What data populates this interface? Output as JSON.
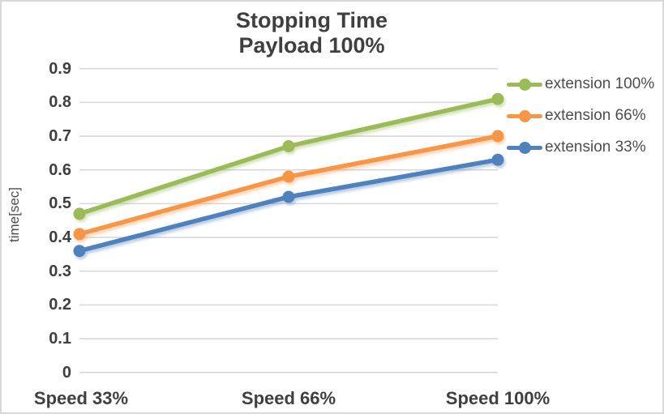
{
  "window": {
    "background": "#ffffff",
    "border_color": "#d9d9d9",
    "gridline_color": "#d8d8d8",
    "text_color": "#3f3f3f"
  },
  "title": {
    "line1": "Stopping Time",
    "line2": "Payload 100%"
  },
  "y_axis": {
    "label": "time[sec]",
    "ticks": [
      "0.9",
      "0.8",
      "0.7",
      "0.6",
      "0.5",
      "0.4",
      "0.3",
      "0.2",
      "0.1",
      "0"
    ]
  },
  "x_axis": {
    "labels": [
      "Speed 33%",
      "Speed 66%",
      "Speed 100%"
    ]
  },
  "legend": {
    "items": [
      {
        "label": "extension 100%",
        "color": "#9BBB59"
      },
      {
        "label": "extension 66%",
        "color": "#F79646"
      },
      {
        "label": "extension 33%",
        "color": "#4F81BD"
      }
    ]
  },
  "chart_data": {
    "type": "line",
    "title": "Stopping Time Payload 100%",
    "xlabel": "",
    "ylabel": "time[sec]",
    "categories": [
      "Speed 33%",
      "Speed 66%",
      "Speed 100%"
    ],
    "series": [
      {
        "name": "extension 100%",
        "color": "#9BBB59",
        "values": [
          0.47,
          0.67,
          0.81
        ]
      },
      {
        "name": "extension 66%",
        "color": "#F79646",
        "values": [
          0.41,
          0.58,
          0.7
        ]
      },
      {
        "name": "extension 33%",
        "color": "#4F81BD",
        "values": [
          0.36,
          0.52,
          0.63
        ]
      }
    ],
    "ylim": [
      0,
      0.9
    ],
    "ytick_step": 0.1,
    "grid": true,
    "legend_position": "right",
    "markers": "circle"
  }
}
